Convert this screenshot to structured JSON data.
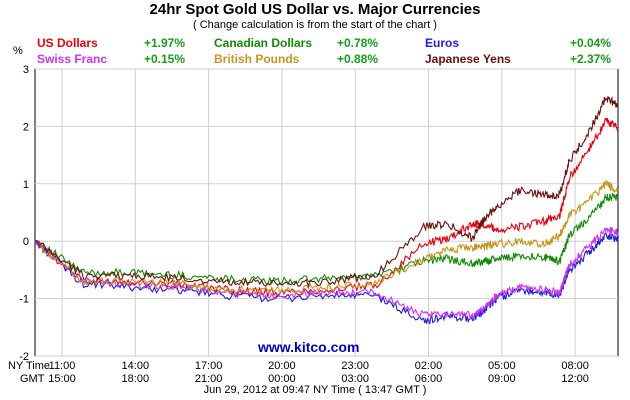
{
  "title": "24hr Spot Gold US Dollar vs. Major Currencies",
  "subtitle": "( Change calculation is from the start of the chart )",
  "unit_label": "%",
  "legend": [
    {
      "name": "US Dollars",
      "value": "+1.97%",
      "color": "#e8000b"
    },
    {
      "name": "Canadian Dollars",
      "value": "+0.78%",
      "color": "#138a07"
    },
    {
      "name": "Euros",
      "value": "+0.04%",
      "color": "#1d1de0"
    },
    {
      "name": "Swiss Franc",
      "value": "+0.15%",
      "color": "#cc33ee"
    },
    {
      "name": "British Pounds",
      "value": "+0.88%",
      "color": "#c8961e"
    },
    {
      "name": "Japanese Yens",
      "value": "+2.37%",
      "color": "#6b0f0f"
    }
  ],
  "legend_value_color": "#1a9a1a",
  "axis_row_labels": {
    "ny": "NY Time",
    "gmt": "GMT"
  },
  "watermark": "www.kitco.com",
  "date_line": "Jun 29, 2012 at 09:47 NY Time ( 13:47 GMT )",
  "chart_data": {
    "type": "line",
    "title": "24hr Spot Gold US Dollar vs. Major Currencies",
    "ylabel": "%",
    "ylim": [
      -2,
      3
    ],
    "yticks": [
      -2,
      -1,
      0,
      1,
      2,
      3
    ],
    "grid": true,
    "x_ticks_ny": [
      "11:00",
      "14:00",
      "17:00",
      "20:00",
      "23:00",
      "02:00",
      "05:00",
      "08:00"
    ],
    "x_ticks_gmt": [
      "15:00",
      "18:00",
      "21:00",
      "00:00",
      "03:00",
      "06:00",
      "09:00",
      "12:00"
    ],
    "x_hours": [
      0,
      2,
      4,
      6,
      8,
      10,
      12,
      14,
      16,
      17,
      18,
      18.5,
      19,
      20,
      21,
      21.6,
      22,
      22.8,
      23.5,
      24
    ],
    "series": [
      {
        "name": "US Dollars",
        "color": "#e8000b",
        "values": [
          0,
          -0.7,
          -0.7,
          -0.75,
          -0.85,
          -0.9,
          -0.85,
          -0.78,
          -0.05,
          0.05,
          0.3,
          0.3,
          0.2,
          0.25,
          0.35,
          0.45,
          1.1,
          1.6,
          2.1,
          1.97
        ]
      },
      {
        "name": "Canadian Dollars",
        "color": "#138a07",
        "values": [
          0,
          -0.55,
          -0.55,
          -0.6,
          -0.65,
          -0.7,
          -0.65,
          -0.6,
          -0.35,
          -0.3,
          -0.4,
          -0.35,
          -0.3,
          -0.25,
          -0.28,
          -0.35,
          0.1,
          0.4,
          0.75,
          0.78
        ]
      },
      {
        "name": "Euros",
        "color": "#1d1de0",
        "values": [
          0,
          -0.75,
          -0.8,
          -0.85,
          -0.95,
          -1.0,
          -0.95,
          -0.95,
          -1.4,
          -1.3,
          -1.35,
          -1.2,
          -1.0,
          -0.85,
          -0.9,
          -0.95,
          -0.5,
          -0.2,
          0.1,
          0.04
        ]
      },
      {
        "name": "Swiss Franc",
        "color": "#cc33ee",
        "values": [
          0,
          -0.7,
          -0.75,
          -0.8,
          -0.9,
          -0.95,
          -0.9,
          -0.9,
          -1.3,
          -1.25,
          -1.3,
          -1.15,
          -0.95,
          -0.8,
          -0.85,
          -0.9,
          -0.4,
          -0.1,
          0.2,
          0.15
        ]
      },
      {
        "name": "British Pounds",
        "color": "#c8961e",
        "values": [
          0,
          -0.7,
          -0.7,
          -0.75,
          -0.85,
          -0.85,
          -0.8,
          -0.75,
          -0.3,
          -0.15,
          -0.1,
          -0.1,
          -0.05,
          0.0,
          -0.05,
          0.1,
          0.45,
          0.7,
          1.0,
          0.88
        ]
      },
      {
        "name": "Japanese Yens",
        "color": "#6b0f0f",
        "values": [
          0,
          -0.6,
          -0.6,
          -0.65,
          -0.7,
          -0.75,
          -0.7,
          -0.6,
          0.25,
          0.3,
          0.05,
          0.4,
          0.6,
          0.9,
          0.8,
          0.8,
          1.4,
          1.9,
          2.5,
          2.37
        ]
      }
    ]
  }
}
